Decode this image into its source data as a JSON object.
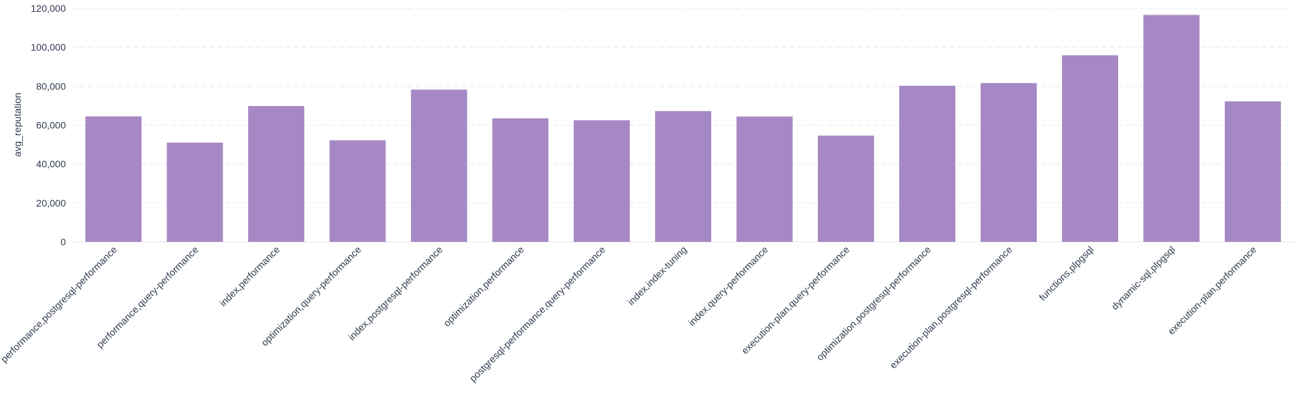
{
  "chart_data": {
    "type": "bar",
    "title": "",
    "xlabel": "",
    "ylabel": "avg_reputation",
    "ylim": [
      0,
      120000
    ],
    "y_ticks": [
      0,
      20000,
      40000,
      60000,
      80000,
      100000,
      120000
    ],
    "y_tick_labels": [
      "0",
      "20,000",
      "40,000",
      "60,000",
      "80,000",
      "100,000",
      "120,000"
    ],
    "grid": true,
    "legend": "none",
    "bar_color": "#a689c4",
    "categories": [
      "performance,postgresql-performance",
      "performance,query-performance",
      "index,performance",
      "optimization,query-performance",
      "index,postgresql-performance",
      "optimization,performance",
      "postgresql-performance,query-performance",
      "index,index-tuning",
      "index,query-performance",
      "execution-plan,query-performance",
      "optimization,postgresql-performance",
      "execution-plan,postgresql-performance",
      "functions,plpgsql",
      "dynamic-sql,plpgsql",
      "execution-plan,performance"
    ],
    "values": [
      64500,
      51000,
      69800,
      52200,
      78200,
      63500,
      62500,
      67200,
      64400,
      54600,
      80200,
      81600,
      95900,
      116600,
      72200
    ]
  }
}
